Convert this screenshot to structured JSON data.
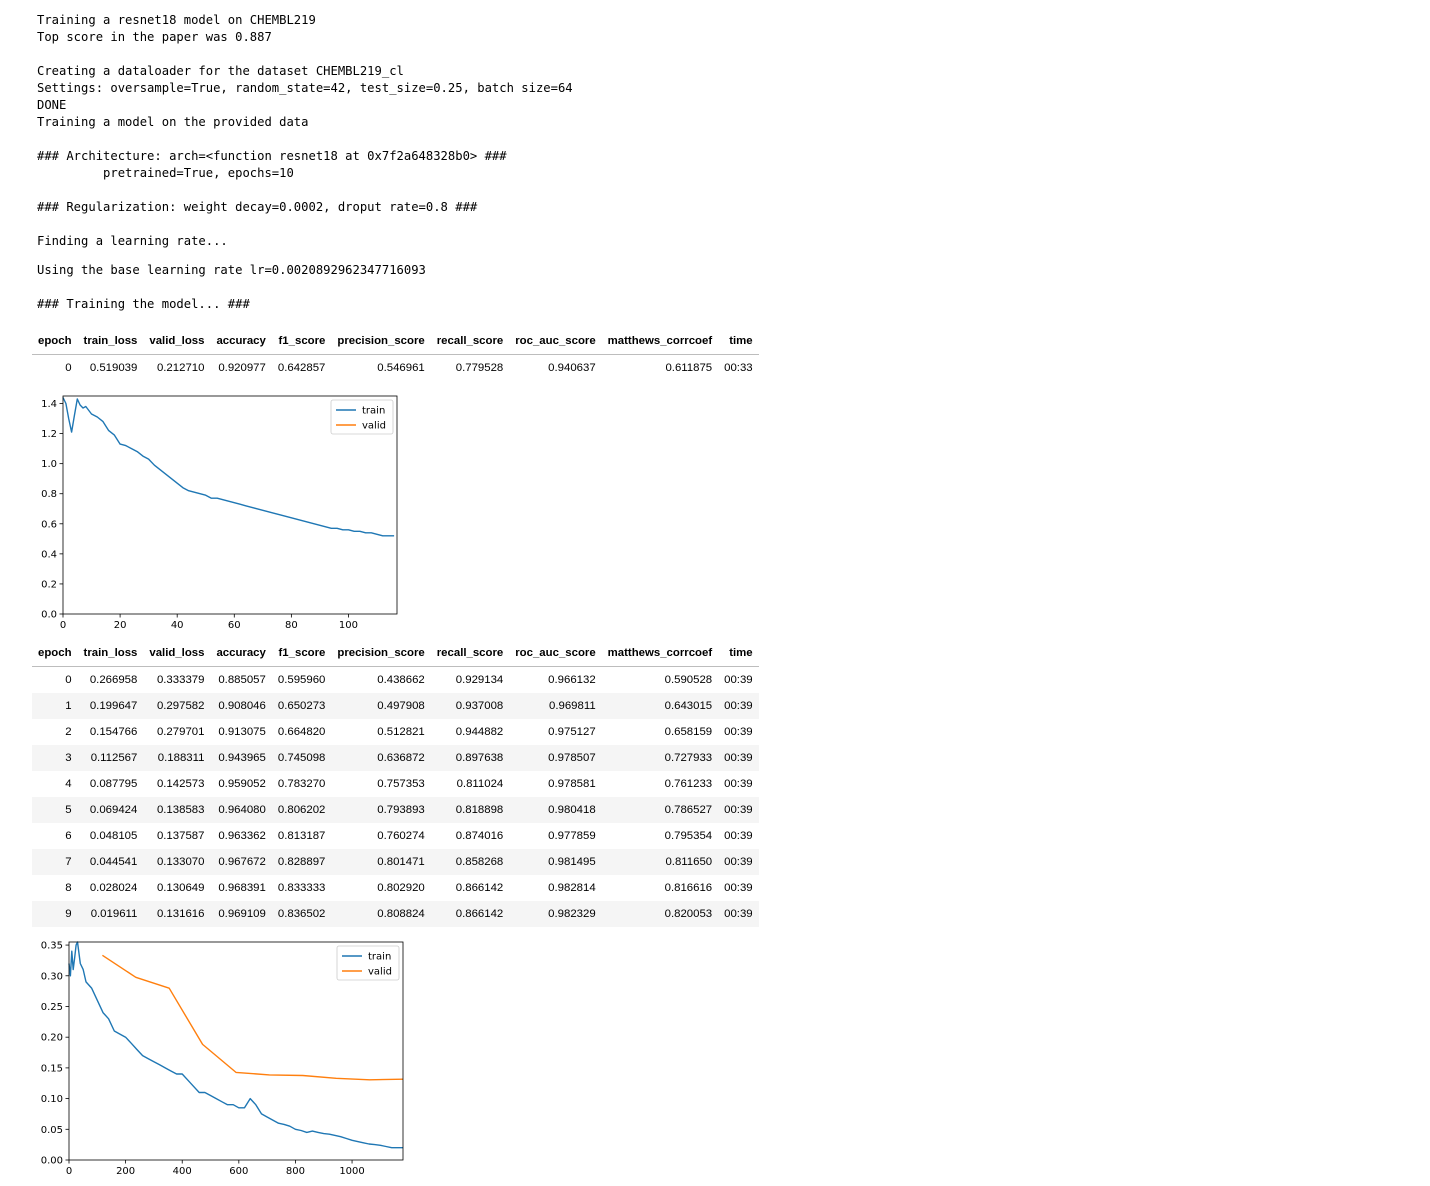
{
  "log": {
    "lines_top": [
      "Training a resnet18 model on CHEMBL219",
      "Top score in the paper was 0.887",
      "",
      "Creating a dataloader for the dataset CHEMBL219_cl",
      "Settings: oversample=True, random_state=42, test_size=0.25, batch size=64",
      "DONE",
      "Training a model on the provided data",
      "",
      "### Architecture: arch=<function resnet18 at 0x7f2a648328b0> ###",
      "         pretrained=True, epochs=10",
      "",
      "### Regularization: weight decay=0.0002, droput rate=0.8 ###",
      "",
      "Finding a learning rate..."
    ],
    "lr_line": "Using the base learning rate lr=0.0020892962347716093",
    "training_line": "### Training the model... ###"
  },
  "columns": [
    "epoch",
    "train_loss",
    "valid_loss",
    "accuracy",
    "f1_score",
    "precision_score",
    "recall_score",
    "roc_auc_score",
    "matthews_corrcoef",
    "time"
  ],
  "table1_rows": [
    [
      "0",
      "0.519039",
      "0.212710",
      "0.920977",
      "0.642857",
      "0.546961",
      "0.779528",
      "0.940637",
      "0.611875",
      "00:33"
    ]
  ],
  "table2_rows": [
    [
      "0",
      "0.266958",
      "0.333379",
      "0.885057",
      "0.595960",
      "0.438662",
      "0.929134",
      "0.966132",
      "0.590528",
      "00:39"
    ],
    [
      "1",
      "0.199647",
      "0.297582",
      "0.908046",
      "0.650273",
      "0.497908",
      "0.937008",
      "0.969811",
      "0.643015",
      "00:39"
    ],
    [
      "2",
      "0.154766",
      "0.279701",
      "0.913075",
      "0.664820",
      "0.512821",
      "0.944882",
      "0.975127",
      "0.658159",
      "00:39"
    ],
    [
      "3",
      "0.112567",
      "0.188311",
      "0.943965",
      "0.745098",
      "0.636872",
      "0.897638",
      "0.978507",
      "0.727933",
      "00:39"
    ],
    [
      "4",
      "0.087795",
      "0.142573",
      "0.959052",
      "0.783270",
      "0.757353",
      "0.811024",
      "0.978581",
      "0.761233",
      "00:39"
    ],
    [
      "5",
      "0.069424",
      "0.138583",
      "0.964080",
      "0.806202",
      "0.793893",
      "0.818898",
      "0.980418",
      "0.786527",
      "00:39"
    ],
    [
      "6",
      "0.048105",
      "0.137587",
      "0.963362",
      "0.813187",
      "0.760274",
      "0.874016",
      "0.977859",
      "0.795354",
      "00:39"
    ],
    [
      "7",
      "0.044541",
      "0.133070",
      "0.967672",
      "0.828897",
      "0.801471",
      "0.858268",
      "0.981495",
      "0.811650",
      "00:39"
    ],
    [
      "8",
      "0.028024",
      "0.130649",
      "0.968391",
      "0.833333",
      "0.802920",
      "0.866142",
      "0.982814",
      "0.816616",
      "00:39"
    ],
    [
      "9",
      "0.019611",
      "0.131616",
      "0.969109",
      "0.836502",
      "0.808824",
      "0.866142",
      "0.982329",
      "0.820053",
      "00:39"
    ]
  ],
  "chart_data": [
    {
      "type": "line",
      "xlim": [
        0,
        117
      ],
      "ylim": [
        0,
        1.45
      ],
      "xticks": [
        0,
        20,
        40,
        60,
        80,
        100
      ],
      "yticks": [
        0.0,
        0.2,
        0.4,
        0.6,
        0.8,
        1.0,
        1.2,
        1.4
      ],
      "legend_position": "top-right",
      "series": [
        {
          "name": "train",
          "color": "#1f77b4",
          "x": [
            0,
            1,
            2,
            3,
            4,
            5,
            6,
            7,
            8,
            10,
            12,
            14,
            16,
            18,
            20,
            22,
            24,
            26,
            28,
            30,
            32,
            34,
            36,
            38,
            40,
            42,
            44,
            46,
            48,
            50,
            52,
            54,
            56,
            58,
            60,
            62,
            64,
            66,
            68,
            70,
            72,
            74,
            76,
            78,
            80,
            82,
            84,
            86,
            88,
            90,
            92,
            94,
            96,
            98,
            100,
            102,
            104,
            106,
            108,
            110,
            112,
            114,
            116
          ],
          "y": [
            1.44,
            1.4,
            1.3,
            1.21,
            1.32,
            1.43,
            1.39,
            1.37,
            1.38,
            1.33,
            1.31,
            1.28,
            1.22,
            1.19,
            1.13,
            1.12,
            1.1,
            1.08,
            1.05,
            1.03,
            0.99,
            0.96,
            0.93,
            0.9,
            0.87,
            0.84,
            0.82,
            0.81,
            0.8,
            0.79,
            0.77,
            0.77,
            0.76,
            0.75,
            0.74,
            0.73,
            0.72,
            0.71,
            0.7,
            0.69,
            0.68,
            0.67,
            0.66,
            0.65,
            0.64,
            0.63,
            0.62,
            0.61,
            0.6,
            0.59,
            0.58,
            0.57,
            0.57,
            0.56,
            0.56,
            0.55,
            0.55,
            0.54,
            0.54,
            0.53,
            0.52,
            0.52,
            0.52
          ]
        },
        {
          "name": "valid",
          "color": "#ff7f0e",
          "x": [],
          "y": []
        }
      ]
    },
    {
      "type": "line",
      "xlim": [
        0,
        1180
      ],
      "ylim": [
        0,
        0.355
      ],
      "xticks": [
        0,
        200,
        400,
        600,
        800,
        1000
      ],
      "yticks": [
        0.0,
        0.05,
        0.1,
        0.15,
        0.2,
        0.25,
        0.3,
        0.35
      ],
      "legend_position": "top-right",
      "series": [
        {
          "name": "train",
          "color": "#1f77b4",
          "x": [
            0,
            5,
            10,
            15,
            20,
            25,
            30,
            40,
            50,
            60,
            80,
            100,
            120,
            140,
            160,
            180,
            200,
            220,
            240,
            260,
            280,
            300,
            320,
            340,
            360,
            380,
            400,
            420,
            440,
            460,
            480,
            500,
            520,
            540,
            560,
            580,
            600,
            620,
            640,
            660,
            680,
            700,
            720,
            740,
            760,
            780,
            800,
            820,
            840,
            860,
            880,
            900,
            920,
            940,
            960,
            980,
            1000,
            1020,
            1040,
            1060,
            1080,
            1100,
            1120,
            1140,
            1160,
            1180
          ],
          "y": [
            0.32,
            0.3,
            0.34,
            0.31,
            0.33,
            0.35,
            0.355,
            0.32,
            0.31,
            0.29,
            0.28,
            0.26,
            0.24,
            0.23,
            0.21,
            0.205,
            0.2,
            0.19,
            0.18,
            0.17,
            0.165,
            0.16,
            0.155,
            0.15,
            0.145,
            0.14,
            0.14,
            0.13,
            0.12,
            0.11,
            0.11,
            0.105,
            0.1,
            0.095,
            0.09,
            0.09,
            0.085,
            0.085,
            0.1,
            0.09,
            0.075,
            0.07,
            0.065,
            0.06,
            0.058,
            0.055,
            0.05,
            0.048,
            0.045,
            0.047,
            0.045,
            0.043,
            0.042,
            0.04,
            0.038,
            0.035,
            0.032,
            0.03,
            0.028,
            0.026,
            0.025,
            0.024,
            0.022,
            0.02,
            0.02,
            0.02
          ]
        },
        {
          "name": "valid",
          "color": "#ff7f0e",
          "x": [
            118,
            236,
            354,
            472,
            590,
            708,
            826,
            944,
            1062,
            1180
          ],
          "y": [
            0.333379,
            0.297582,
            0.279701,
            0.188311,
            0.142573,
            0.138583,
            0.137587,
            0.13307,
            0.130649,
            0.131616
          ]
        }
      ]
    }
  ]
}
